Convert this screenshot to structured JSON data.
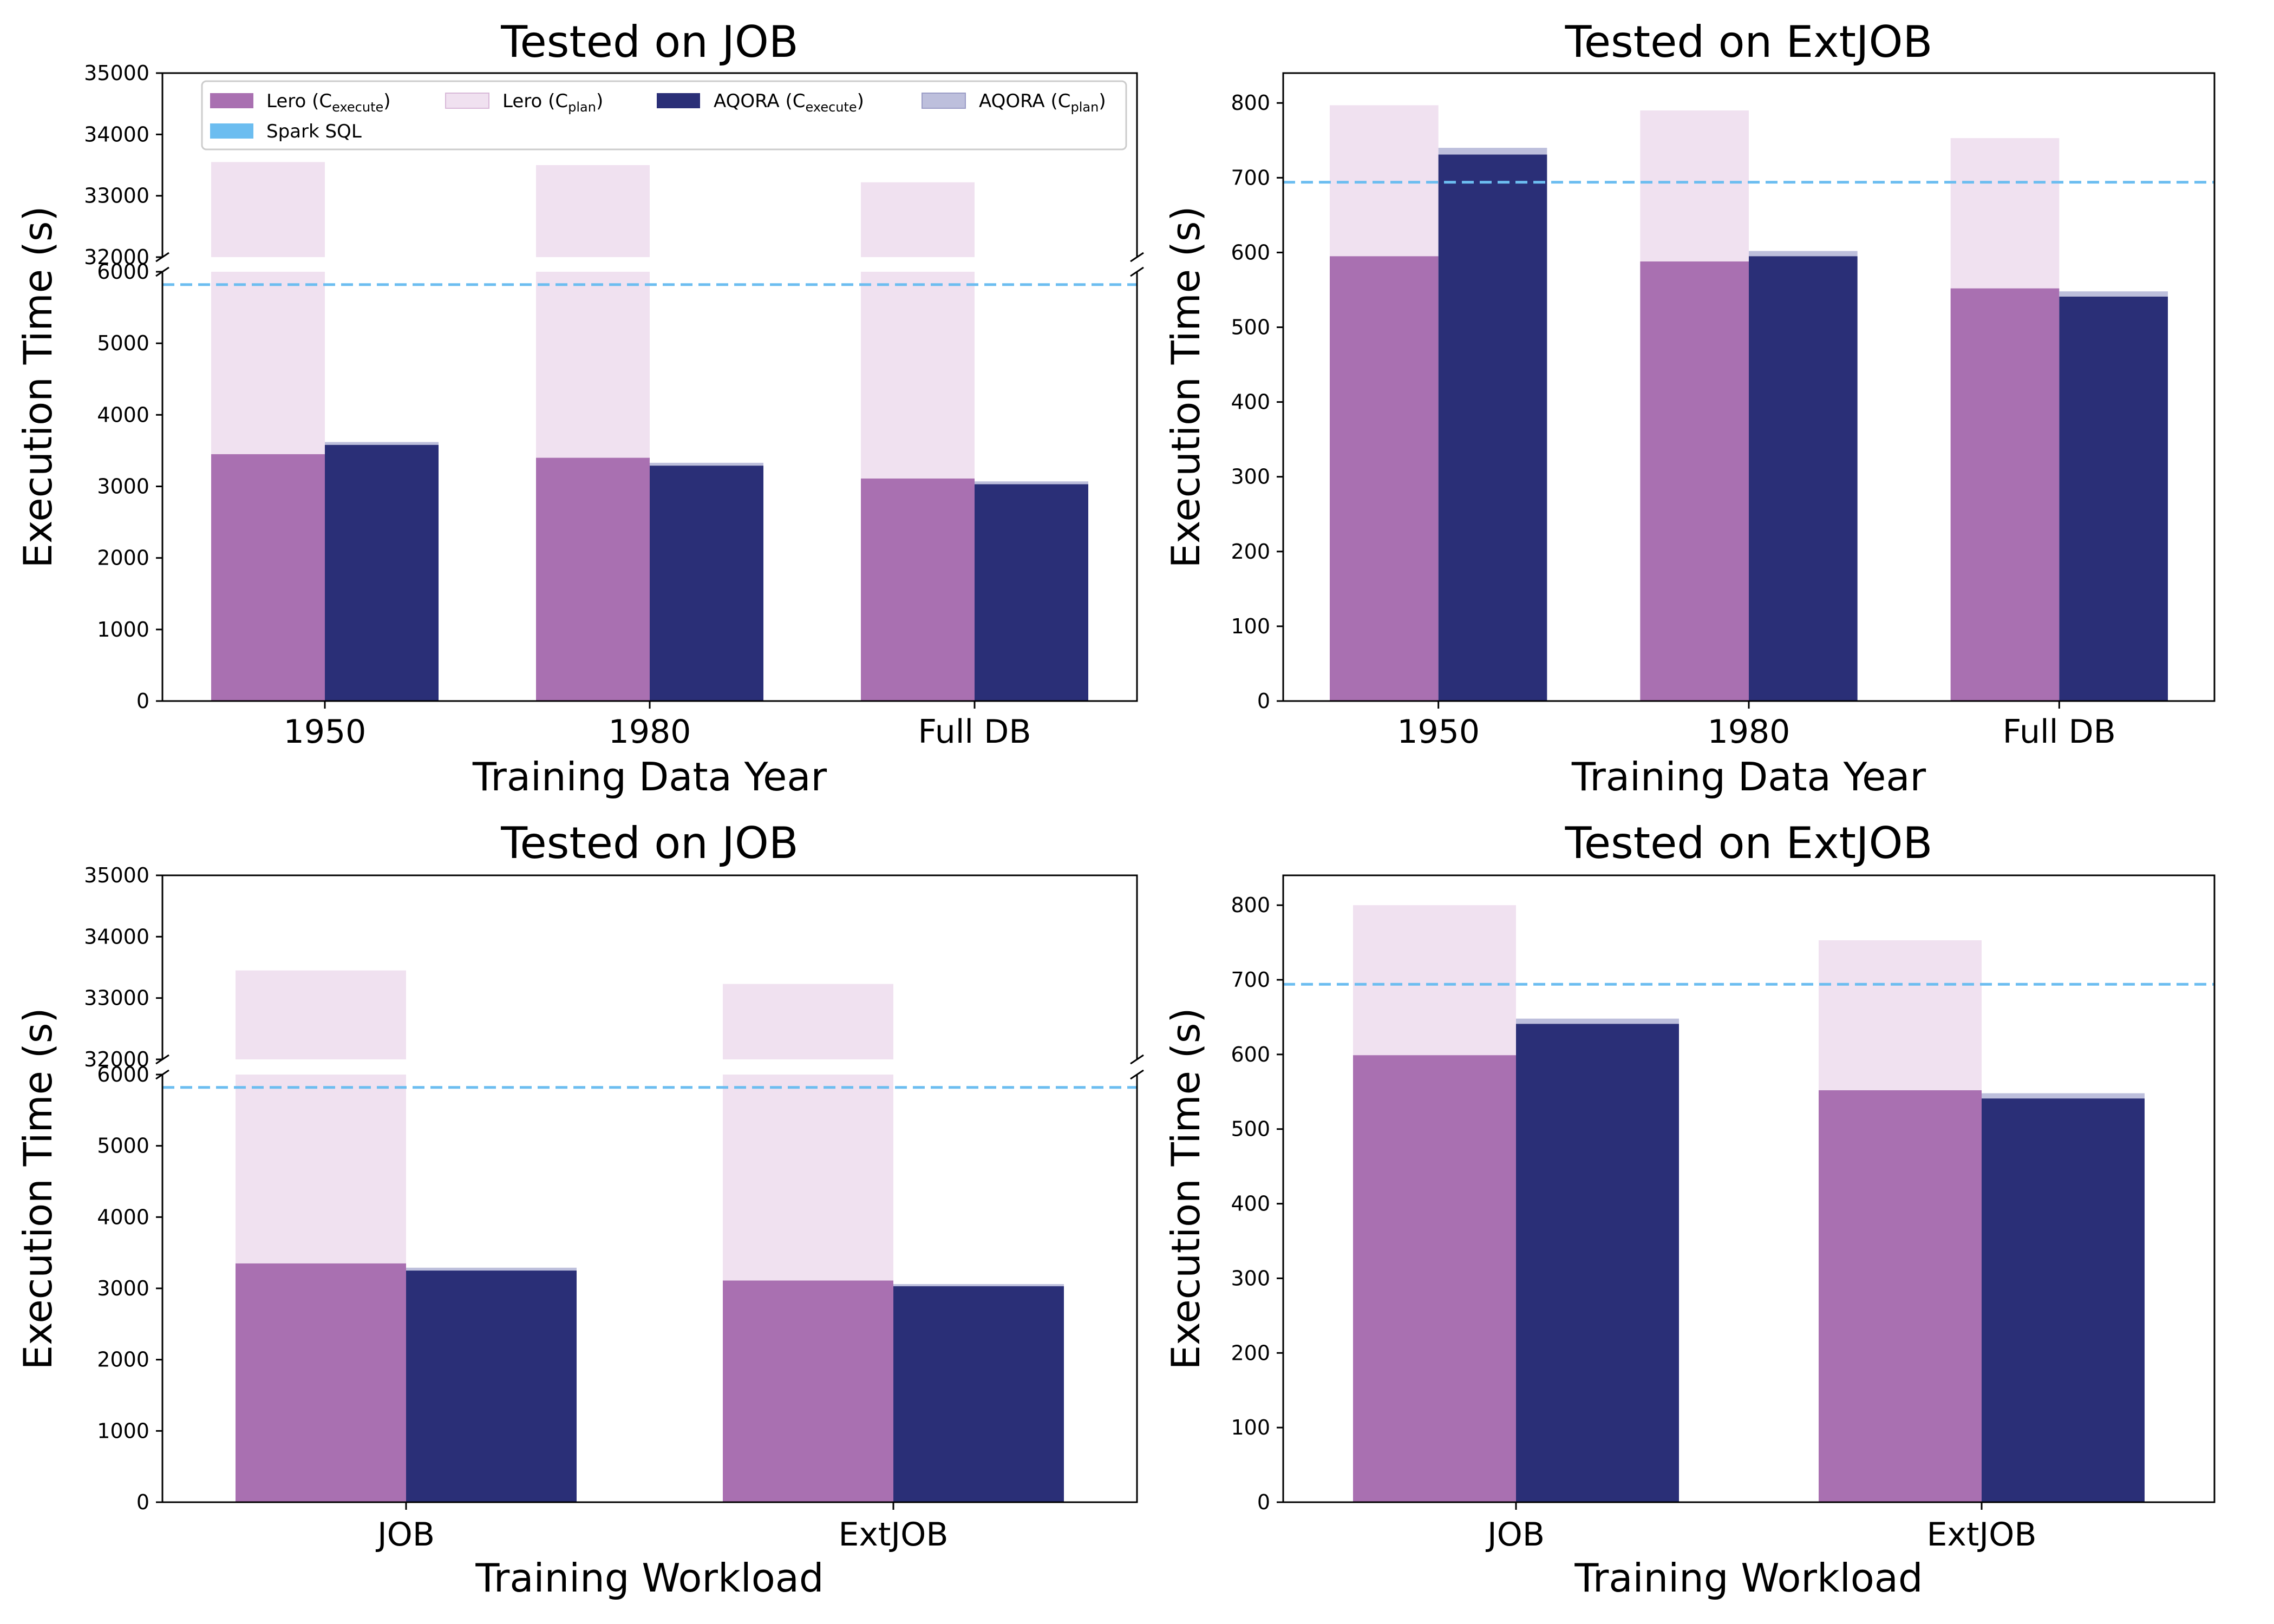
{
  "colors": {
    "lero_execute": "#a970b1",
    "lero_plan": "#f0e1f0",
    "aqora_execute": "#2a2f77",
    "aqora_plan": "#bdbfdc",
    "spark": "#6cbdf0"
  },
  "legend": {
    "lero_execute": "Lero (C",
    "lero_execute_sub": "execute",
    "lero_plan": "Lero (C",
    "lero_plan_sub": "plan",
    "aqora_execute": "AQORA (C",
    "aqora_execute_sub": "execute",
    "aqora_plan": "AQORA (C",
    "aqora_plan_sub": "plan",
    "close_paren": ")",
    "spark": "Spark SQL"
  },
  "chart_data": [
    {
      "type": "bar",
      "stacked": true,
      "broken_axis": true,
      "title": "Tested on JOB",
      "xlabel": "Training Data Year",
      "ylabel": "Execution Time (s)",
      "categories": [
        "1950",
        "1980",
        "Full DB"
      ],
      "lower_ylim": [
        0,
        6000
      ],
      "upper_ylim": [
        32000,
        35000
      ],
      "lower_yticks": [
        "0",
        "1000",
        "2000",
        "3000",
        "4000",
        "5000",
        "6000"
      ],
      "upper_yticks": [
        "32000",
        "33000",
        "34000",
        "35000"
      ],
      "series": [
        {
          "name": "Lero (C_execute)",
          "values": [
            3450,
            3400,
            3110
          ]
        },
        {
          "name": "Lero (C_plan)",
          "totals": [
            33550,
            33500,
            33220
          ]
        },
        {
          "name": "AQORA (C_execute)",
          "values": [
            3580,
            3290,
            3030
          ]
        },
        {
          "name": "AQORA (C_plan)",
          "totals": [
            3620,
            3330,
            3070
          ]
        }
      ],
      "spark_sql": 5820,
      "legend": true
    },
    {
      "type": "bar",
      "stacked": true,
      "broken_axis": false,
      "title": "Tested on ExtJOB",
      "xlabel": "Training Data Year",
      "ylabel": "Execution Time (s)",
      "categories": [
        "1950",
        "1980",
        "Full DB"
      ],
      "ylim": [
        0,
        840
      ],
      "yticks": [
        "0",
        "100",
        "200",
        "300",
        "400",
        "500",
        "600",
        "700",
        "800"
      ],
      "series": [
        {
          "name": "Lero (C_execute)",
          "values": [
            595,
            588,
            552
          ]
        },
        {
          "name": "Lero (C_plan)",
          "totals": [
            797,
            790,
            753
          ]
        },
        {
          "name": "AQORA (C_execute)",
          "values": [
            731,
            595,
            541
          ]
        },
        {
          "name": "AQORA (C_plan)",
          "totals": [
            740,
            602,
            548
          ]
        }
      ],
      "spark_sql": 694,
      "legend": false
    },
    {
      "type": "bar",
      "stacked": true,
      "broken_axis": true,
      "title": "Tested on JOB",
      "xlabel": "Training Workload",
      "ylabel": "Execution Time (s)",
      "categories": [
        "JOB",
        "ExtJOB"
      ],
      "lower_ylim": [
        0,
        6000
      ],
      "upper_ylim": [
        32000,
        35000
      ],
      "lower_yticks": [
        "0",
        "1000",
        "2000",
        "3000",
        "4000",
        "5000",
        "6000"
      ],
      "upper_yticks": [
        "32000",
        "33000",
        "34000",
        "35000"
      ],
      "series": [
        {
          "name": "Lero (C_execute)",
          "values": [
            3350,
            3110
          ]
        },
        {
          "name": "Lero (C_plan)",
          "totals": [
            33450,
            33230
          ]
        },
        {
          "name": "AQORA (C_execute)",
          "values": [
            3250,
            3030
          ]
        },
        {
          "name": "AQORA (C_plan)",
          "totals": [
            3290,
            3060
          ]
        }
      ],
      "spark_sql": 5820,
      "legend": false
    },
    {
      "type": "bar",
      "stacked": true,
      "broken_axis": false,
      "title": "Tested on ExtJOB",
      "xlabel": "Training Workload",
      "ylabel": "Execution Time (s)",
      "categories": [
        "JOB",
        "ExtJOB"
      ],
      "ylim": [
        0,
        840
      ],
      "yticks": [
        "0",
        "100",
        "200",
        "300",
        "400",
        "500",
        "600",
        "700",
        "800"
      ],
      "series": [
        {
          "name": "Lero (C_execute)",
          "values": [
            599,
            552
          ]
        },
        {
          "name": "Lero (C_plan)",
          "totals": [
            800,
            753
          ]
        },
        {
          "name": "AQORA (C_execute)",
          "values": [
            641,
            541
          ]
        },
        {
          "name": "AQORA (C_plan)",
          "totals": [
            648,
            548
          ]
        }
      ],
      "spark_sql": 694,
      "legend": false
    }
  ]
}
